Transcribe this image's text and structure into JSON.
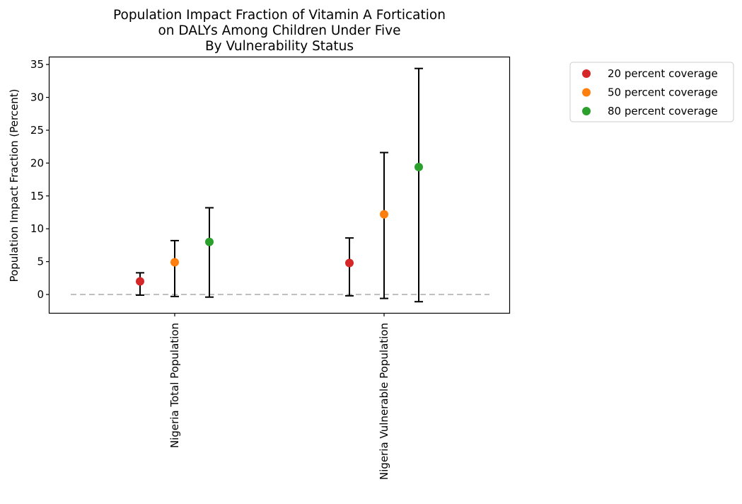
{
  "chart_data": {
    "type": "scatter",
    "title_lines": [
      "Population Impact Fraction of Vitamin A Fortication",
      "on DALYs Among Children Under Five",
      "By Vulnerability Status"
    ],
    "xlabel": "",
    "ylabel": "Population Impact Fraction (Percent)",
    "ylim": [
      -2.8,
      36.2
    ],
    "yticks": [
      "0",
      "5",
      "10",
      "15",
      "20",
      "25",
      "30",
      "35"
    ],
    "categories": [
      "Nigeria Total Population",
      "Nigeria Vulnerable Population"
    ],
    "reference_line": {
      "y": 0,
      "style": "dashed",
      "color": "#bfbfbf"
    },
    "grid": false,
    "legend_position": "outside-right",
    "series": [
      {
        "name": "20 percent coverage",
        "color": "#d62728",
        "values": [
          2.0,
          4.8
        ],
        "lower": [
          -0.1,
          -0.2
        ],
        "upper": [
          3.3,
          8.6
        ]
      },
      {
        "name": "50 percent coverage",
        "color": "#ff7f0e",
        "values": [
          4.9,
          12.2
        ],
        "lower": [
          -0.3,
          -0.6
        ],
        "upper": [
          8.2,
          21.6
        ]
      },
      {
        "name": "80 percent coverage",
        "color": "#2ca02c",
        "values": [
          8.0,
          19.4
        ],
        "lower": [
          -0.4,
          -1.1
        ],
        "upper": [
          13.2,
          34.4
        ]
      }
    ]
  }
}
